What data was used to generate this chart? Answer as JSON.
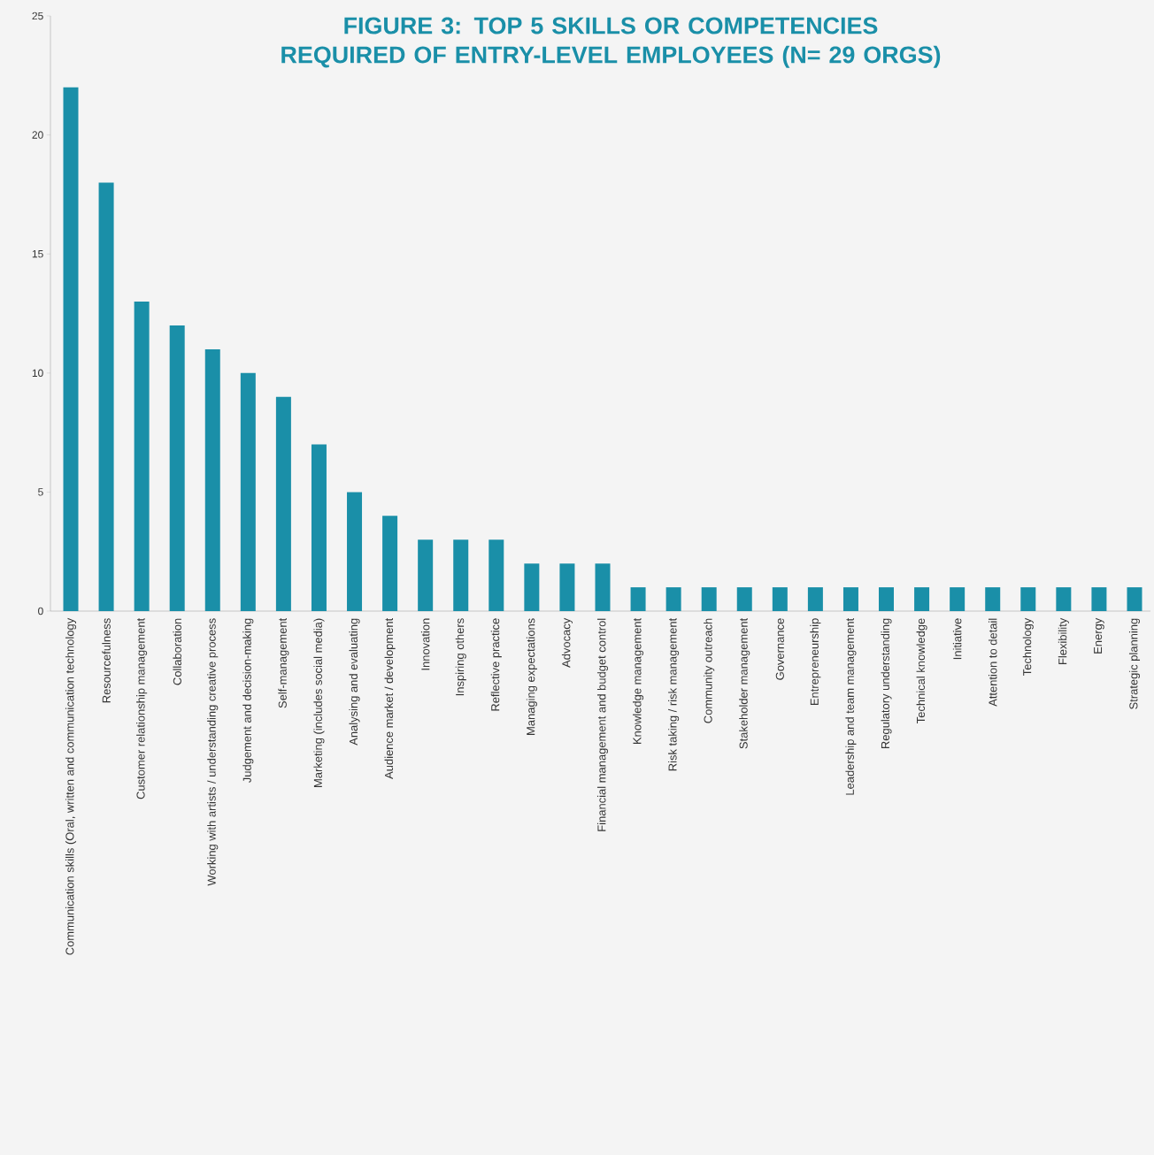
{
  "chart_data": {
    "type": "bar",
    "title": "FIGURE 3: TOP 5 SKILLS OR COMPETENCIES REQUIRED OF ENTRY-LEVEL EMPLOYEES (N= 29 ORGS)",
    "categories": [
      "Communication skills (Oral, written and communication technology",
      "Resourcefulness",
      "Customer relationship management",
      "Collaboration",
      "Working with artists / understanding creative process",
      "Judgement and decision-making",
      "Self-management",
      "Marketing (includes social media)",
      "Analysing and evaluating",
      "Audience market / development",
      "Innovation",
      "Inspiring others",
      "Reflective practice",
      "Managing expectations",
      "Advocacy",
      "Financial management and budget control",
      "Knowledge management",
      "Risk taking / risk management",
      "Community outreach",
      "Stakeholder management",
      "Governance",
      "Entrepreneurship",
      "Leadership and team management",
      "Regulatory understanding",
      "Technical knowledge",
      "Initiative",
      "Attention to detail",
      "Technology",
      "Flexibility",
      "Energy",
      "Strategic planning"
    ],
    "values": [
      22,
      18,
      13,
      12,
      11,
      10,
      9,
      7,
      5,
      4,
      3,
      3,
      3,
      2,
      2,
      2,
      1,
      1,
      1,
      1,
      1,
      1,
      1,
      1,
      1,
      1,
      1,
      1,
      1,
      1,
      1
    ],
    "color": "#1a8fa8",
    "ylim": [
      0,
      25
    ],
    "yticks": [
      0,
      5,
      10,
      15,
      20,
      25
    ]
  }
}
